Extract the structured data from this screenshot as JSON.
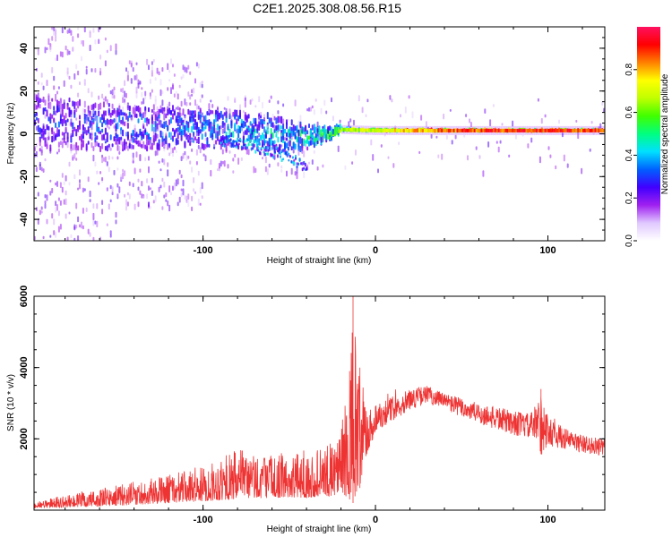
{
  "title": "C2E1.2025.308.08.56.R15",
  "chart_data": [
    {
      "type": "heatmap",
      "title": "C2E1.2025.308.08.56.R15",
      "xlabel": "Height of straight line (km)",
      "ylabel": "Frequency (Hz)",
      "xlim": [
        -198,
        133
      ],
      "ylim": [
        -50,
        50
      ],
      "xticks": [
        -100,
        0,
        100
      ],
      "xtick_labels": [
        "-100",
        "0",
        "100"
      ],
      "yticks": [
        -40,
        -20,
        0,
        20,
        40
      ],
      "ytick_labels": [
        "-40",
        "-20",
        "0",
        "20",
        "40"
      ],
      "colorbar": {
        "label": "Normalized spectral amplitude",
        "range": [
          0,
          1
        ],
        "ticks": [
          0.0,
          0.2,
          0.4,
          0.6,
          0.8
        ],
        "tick_labels": [
          "0.0",
          "0.2",
          "0.4",
          "0.6",
          "0.8"
        ],
        "colormap": [
          "#ffffff",
          "#e0c8ff",
          "#a020f0",
          "#4000ff",
          "#0060ff",
          "#00e0ff",
          "#00ff80",
          "#40ff00",
          "#c0ff00",
          "#ffff00",
          "#ff8000",
          "#ff0000",
          "#ff1060"
        ]
      },
      "ridge": {
        "description_points_x": [
          -198,
          -150,
          -100,
          -60,
          -40,
          -25,
          -20,
          0,
          40,
          80,
          133
        ],
        "center_hz": [
          5,
          3,
          2,
          0,
          -2,
          0,
          2,
          1.5,
          1.5,
          1.5,
          1.5
        ],
        "spread_hz": [
          16,
          13,
          11,
          10,
          7,
          3,
          2,
          1.5,
          1.5,
          1.5,
          1.5
        ],
        "amplitude": [
          0.25,
          0.3,
          0.35,
          0.4,
          0.45,
          0.55,
          0.65,
          0.7,
          0.85,
          0.9,
          0.88
        ]
      },
      "branch": {
        "x": [
          -90,
          -70,
          -55,
          -40
        ],
        "center_hz": [
          -2,
          -5,
          -9,
          -15
        ],
        "amplitude": [
          0.35,
          0.4,
          0.35,
          0.3
        ]
      }
    },
    {
      "type": "line",
      "xlabel": "Height of straight line (km)",
      "ylabel": "SNR (10 * v/v)",
      "xlim": [
        -198,
        133
      ],
      "ylim": [
        0,
        6000
      ],
      "xticks": [
        -100,
        0,
        100
      ],
      "xtick_labels": [
        "-100",
        "0",
        "100"
      ],
      "yticks": [
        2000,
        4000,
        6000
      ],
      "ytick_labels": [
        "2000",
        "4000",
        "6000"
      ],
      "color": "#ee3333",
      "series": [
        {
          "name": "SNR",
          "envelope_x": [
            -198,
            -180,
            -160,
            -140,
            -120,
            -100,
            -80,
            -60,
            -40,
            -25,
            -20,
            -15,
            -13,
            -10,
            -5,
            0,
            10,
            20,
            30,
            40,
            60,
            80,
            90,
            97,
            100,
            110,
            120,
            133
          ],
          "envelope_upper": [
            250,
            400,
            600,
            800,
            1000,
            1200,
            1700,
            1600,
            1600,
            1900,
            2600,
            3400,
            6000,
            3900,
            3000,
            3000,
            3200,
            3400,
            3500,
            3300,
            3000,
            2800,
            2700,
            3400,
            2600,
            2300,
            2100,
            2000
          ],
          "envelope_lower": [
            50,
            80,
            100,
            150,
            200,
            250,
            300,
            350,
            350,
            400,
            500,
            300,
            200,
            400,
            1500,
            2200,
            2500,
            2800,
            3000,
            2800,
            2400,
            2100,
            2000,
            1500,
            1800,
            1700,
            1600,
            1500
          ],
          "peaks": [
            {
              "x": -13,
              "y": 6000
            },
            {
              "x": -15,
              "y": 3900
            },
            {
              "x": -9,
              "y": 4000
            },
            {
              "x": 96,
              "y": 3400
            }
          ]
        }
      ]
    }
  ]
}
